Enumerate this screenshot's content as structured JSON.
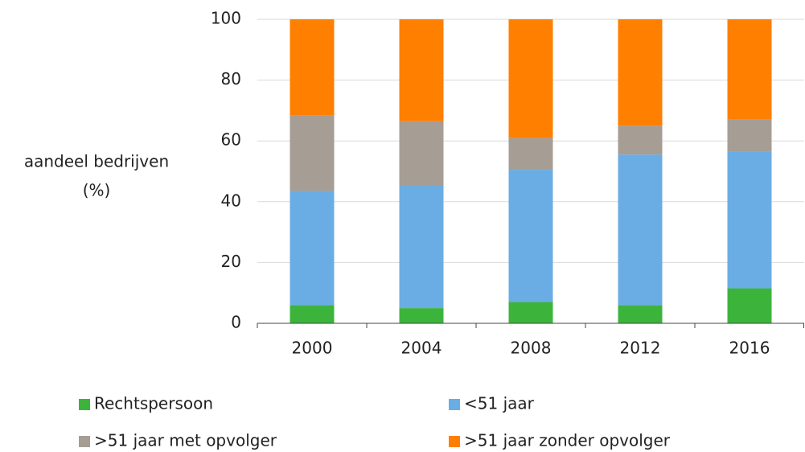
{
  "chart_data": {
    "type": "stacked_bar",
    "ylabel": [
      "aandeel bedrijven",
      "(%)"
    ],
    "categories": [
      "2000",
      "2004",
      "2008",
      "2012",
      "2016"
    ],
    "series": [
      {
        "name": "Rechtspersoon",
        "color": "#3cb43c",
        "values": [
          6,
          5,
          7,
          6,
          11.5
        ]
      },
      {
        "name": "<51 jaar",
        "color": "#6aade4",
        "values": [
          37.5,
          40.5,
          43.5,
          49.5,
          45
        ]
      },
      {
        "name": ">51 jaar met opvolger",
        "color": "#a69d94",
        "values": [
          25,
          21,
          10.5,
          9.5,
          10.5
        ]
      },
      {
        "name": ">51 jaar zonder opvolger",
        "color": "#ff7f00",
        "values": [
          31.5,
          33.5,
          39,
          35,
          33
        ]
      }
    ],
    "ylim": [
      0,
      100
    ],
    "yticks": [
      0,
      20,
      40,
      60,
      80,
      100
    ],
    "grid": true
  }
}
